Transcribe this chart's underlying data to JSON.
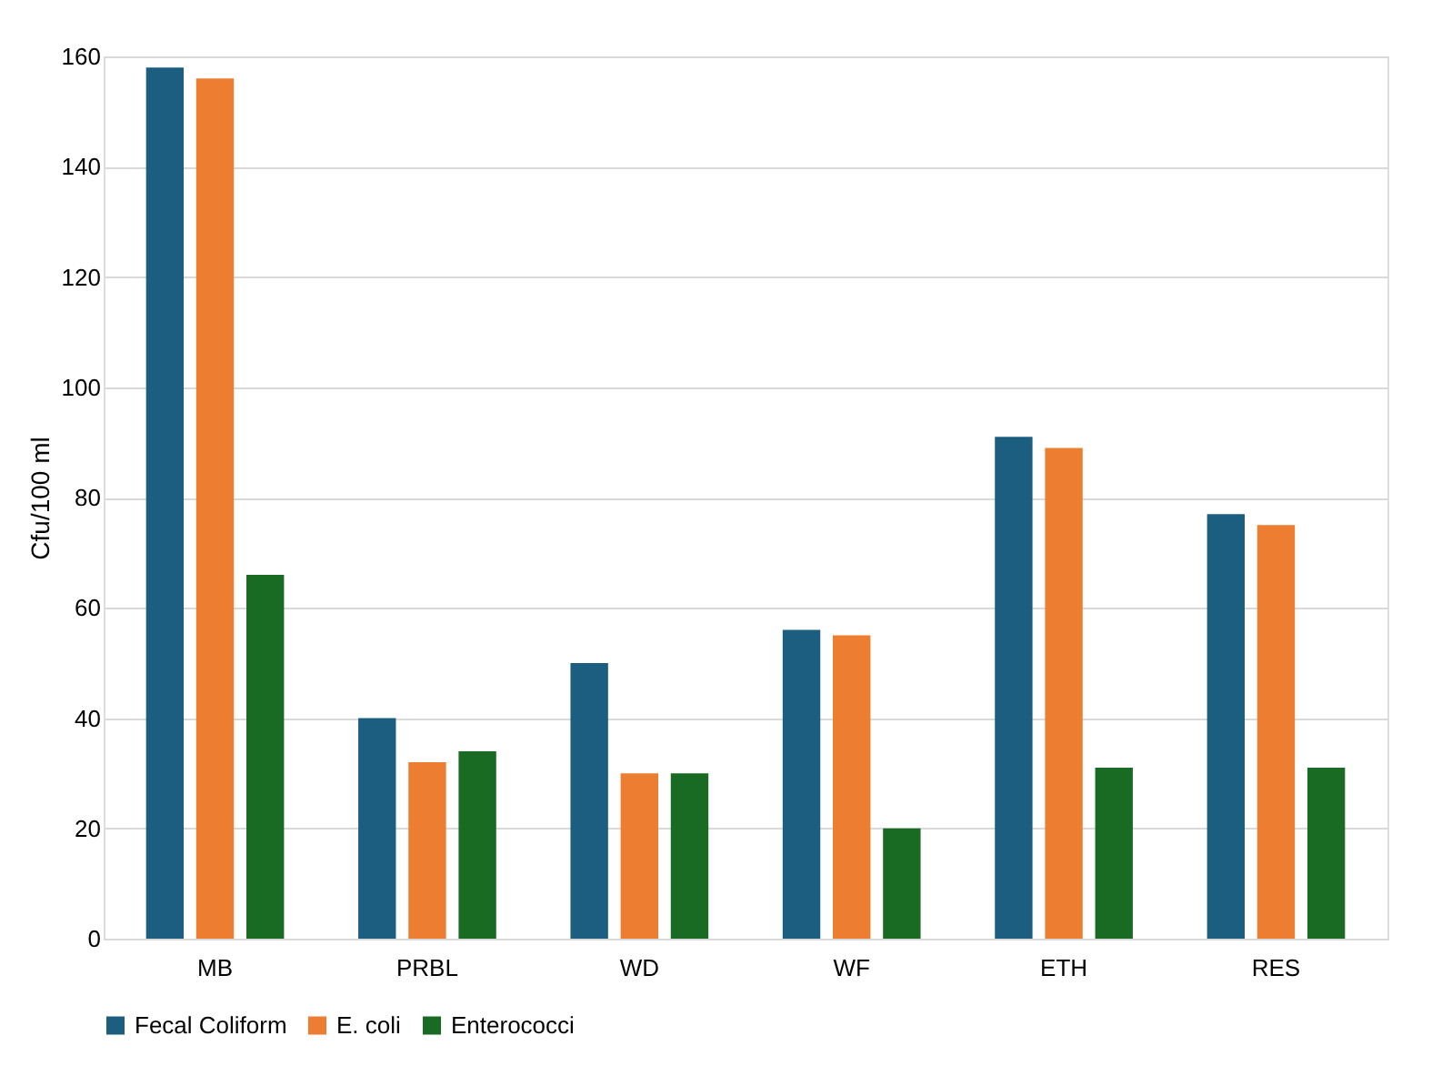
{
  "chart_data": {
    "type": "bar",
    "ylabel": "Cfu/100 ml",
    "categories": [
      "MB",
      "PRBL",
      "WD",
      "WF",
      "ETH",
      "RES"
    ],
    "series": [
      {
        "name": "Fecal Coliform",
        "color": "#1b5e80",
        "values": [
          158,
          40,
          50,
          56,
          91,
          77
        ]
      },
      {
        "name": "E. coli",
        "color": "#ed7d31",
        "values": [
          156,
          32,
          30,
          55,
          89,
          75
        ]
      },
      {
        "name": "Enterococci",
        "color": "#196b24",
        "values": [
          66,
          34,
          30,
          20,
          31,
          31
        ]
      }
    ],
    "ylim": [
      0,
      160
    ],
    "yticks": [
      0,
      20,
      40,
      60,
      80,
      100,
      120,
      140,
      160
    ],
    "grid": "y",
    "legend": "bottom"
  }
}
